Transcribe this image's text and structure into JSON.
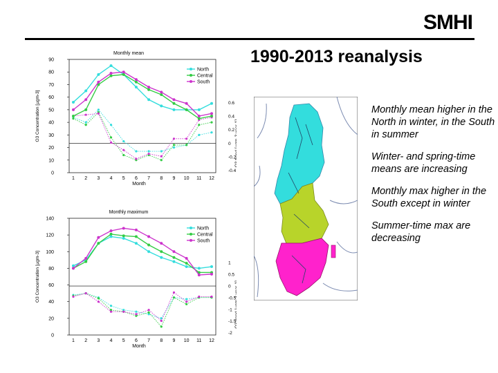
{
  "header": {
    "logo": "SMHI",
    "title": "1990-2013 reanalysis"
  },
  "bullets": [
    "Monthly mean higher in the North in winter, in the South in summer",
    "Winter- and spring-time means are increasing",
    "Monthly max higher in the South except in winter",
    "Summer-time max are decreasing"
  ],
  "colors": {
    "north": "#33dddd",
    "central": "#33cc44",
    "south": "#cc33cc",
    "trend": "#777777"
  },
  "chart_data": [
    {
      "type": "line",
      "title": "Monthly mean",
      "xlabel": "Month",
      "ylabel": "O3 Concentration [µgm-3]",
      "y2label": "O3 trend [µgm-3 year-1]",
      "x": [
        1,
        2,
        3,
        4,
        5,
        6,
        7,
        8,
        9,
        10,
        11,
        12
      ],
      "ylim": [
        0,
        90
      ],
      "yticks": [
        0,
        10,
        20,
        30,
        40,
        50,
        60,
        70,
        80,
        90
      ],
      "y2ticks": [
        "-0.4",
        "-0.2",
        "0",
        "0.2",
        "0.4",
        "0.6"
      ],
      "legend_position": "top-right",
      "series": [
        {
          "name": "North",
          "values": [
            56,
            65,
            78,
            85,
            78,
            68,
            58,
            53,
            50,
            50,
            50,
            55
          ]
        },
        {
          "name": "Central",
          "values": [
            45,
            50,
            70,
            77,
            78,
            72,
            66,
            62,
            55,
            50,
            43,
            45
          ]
        },
        {
          "name": "South",
          "values": [
            50,
            58,
            72,
            79,
            80,
            74,
            68,
            64,
            58,
            55,
            45,
            47
          ]
        }
      ],
      "trend_series": [
        {
          "name": "North",
          "values": [
            44,
            40,
            50,
            38,
            25,
            17,
            17,
            17,
            20,
            22,
            30,
            32
          ]
        },
        {
          "name": "Central",
          "values": [
            43,
            38,
            48,
            28,
            14,
            10,
            14,
            10,
            22,
            22,
            38,
            40
          ]
        },
        {
          "name": "South",
          "values": [
            45,
            46,
            47,
            24,
            18,
            11,
            15,
            13,
            27,
            27,
            42,
            44
          ]
        }
      ]
    },
    {
      "type": "line",
      "title": "Monthly maximum",
      "xlabel": "Month",
      "ylabel": "O3 Concentration [µgm-3]",
      "y2label": "O3 trend [µgm-3 year-1]",
      "x": [
        1,
        2,
        3,
        4,
        5,
        6,
        7,
        8,
        9,
        10,
        11,
        12
      ],
      "ylim": [
        0,
        140
      ],
      "yticks": [
        0,
        20,
        40,
        60,
        80,
        100,
        120,
        140
      ],
      "y2ticks": [
        "-2",
        "-1.5",
        "-1",
        "-0.5",
        "0",
        "0.5",
        "1"
      ],
      "legend_position": "top-right",
      "series": [
        {
          "name": "North",
          "values": [
            83,
            90,
            110,
            118,
            116,
            110,
            100,
            93,
            88,
            82,
            80,
            82
          ]
        },
        {
          "name": "Central",
          "values": [
            80,
            88,
            110,
            121,
            119,
            118,
            108,
            100,
            93,
            86,
            75,
            75
          ]
        },
        {
          "name": "South",
          "values": [
            80,
            92,
            117,
            125,
            128,
            126,
            118,
            110,
            100,
            92,
            72,
            73
          ]
        }
      ],
      "trend_series": [
        {
          "name": "North",
          "values": [
            48,
            50,
            45,
            35,
            30,
            28,
            25,
            20,
            45,
            43,
            45,
            45
          ]
        },
        {
          "name": "Central",
          "values": [
            47,
            50,
            44,
            30,
            28,
            23,
            27,
            10,
            45,
            37,
            45,
            45
          ]
        },
        {
          "name": "South",
          "values": [
            46,
            50,
            40,
            28,
            28,
            25,
            30,
            17,
            51,
            40,
            46,
            46
          ]
        }
      ]
    }
  ]
}
